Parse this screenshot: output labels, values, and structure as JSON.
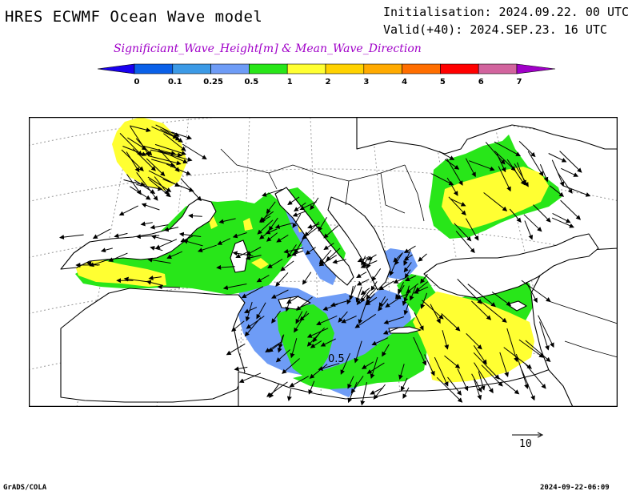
{
  "header": {
    "title": "HRES ECWMF Ocean Wave model",
    "initialisation": "Initialisation: 2024.09.22. 00 UTC",
    "valid": "Valid(+40): 2024.SEP.23. 16 UTC",
    "subtitle": "Significiant_Wave_Height[m] & Mean_Wave_Direction"
  },
  "legend": {
    "levels": [
      "0",
      "0.1",
      "0.25",
      "0.5",
      "1",
      "2",
      "3",
      "4",
      "5",
      "6",
      "7"
    ],
    "colors": [
      "#1a00f0",
      "#0a60e8",
      "#3c9ae6",
      "#6e9cf6",
      "#28e619",
      "#ffff32",
      "#ffd200",
      "#ffaa00",
      "#ff6e00",
      "#ff0000",
      "#d2649e",
      "#a000c8"
    ]
  },
  "map": {
    "contour_label": "0.5",
    "land_color": "#ffffff",
    "sea_fill": {
      "lt_0_5": "#6e9cf6",
      "0_5_to_1": "#28e619",
      "1_to_2": "#ffff32"
    }
  },
  "scale": {
    "label": "10"
  },
  "footer": {
    "left": "GrADS/COLA",
    "right": "2024-09-22-06:09"
  }
}
